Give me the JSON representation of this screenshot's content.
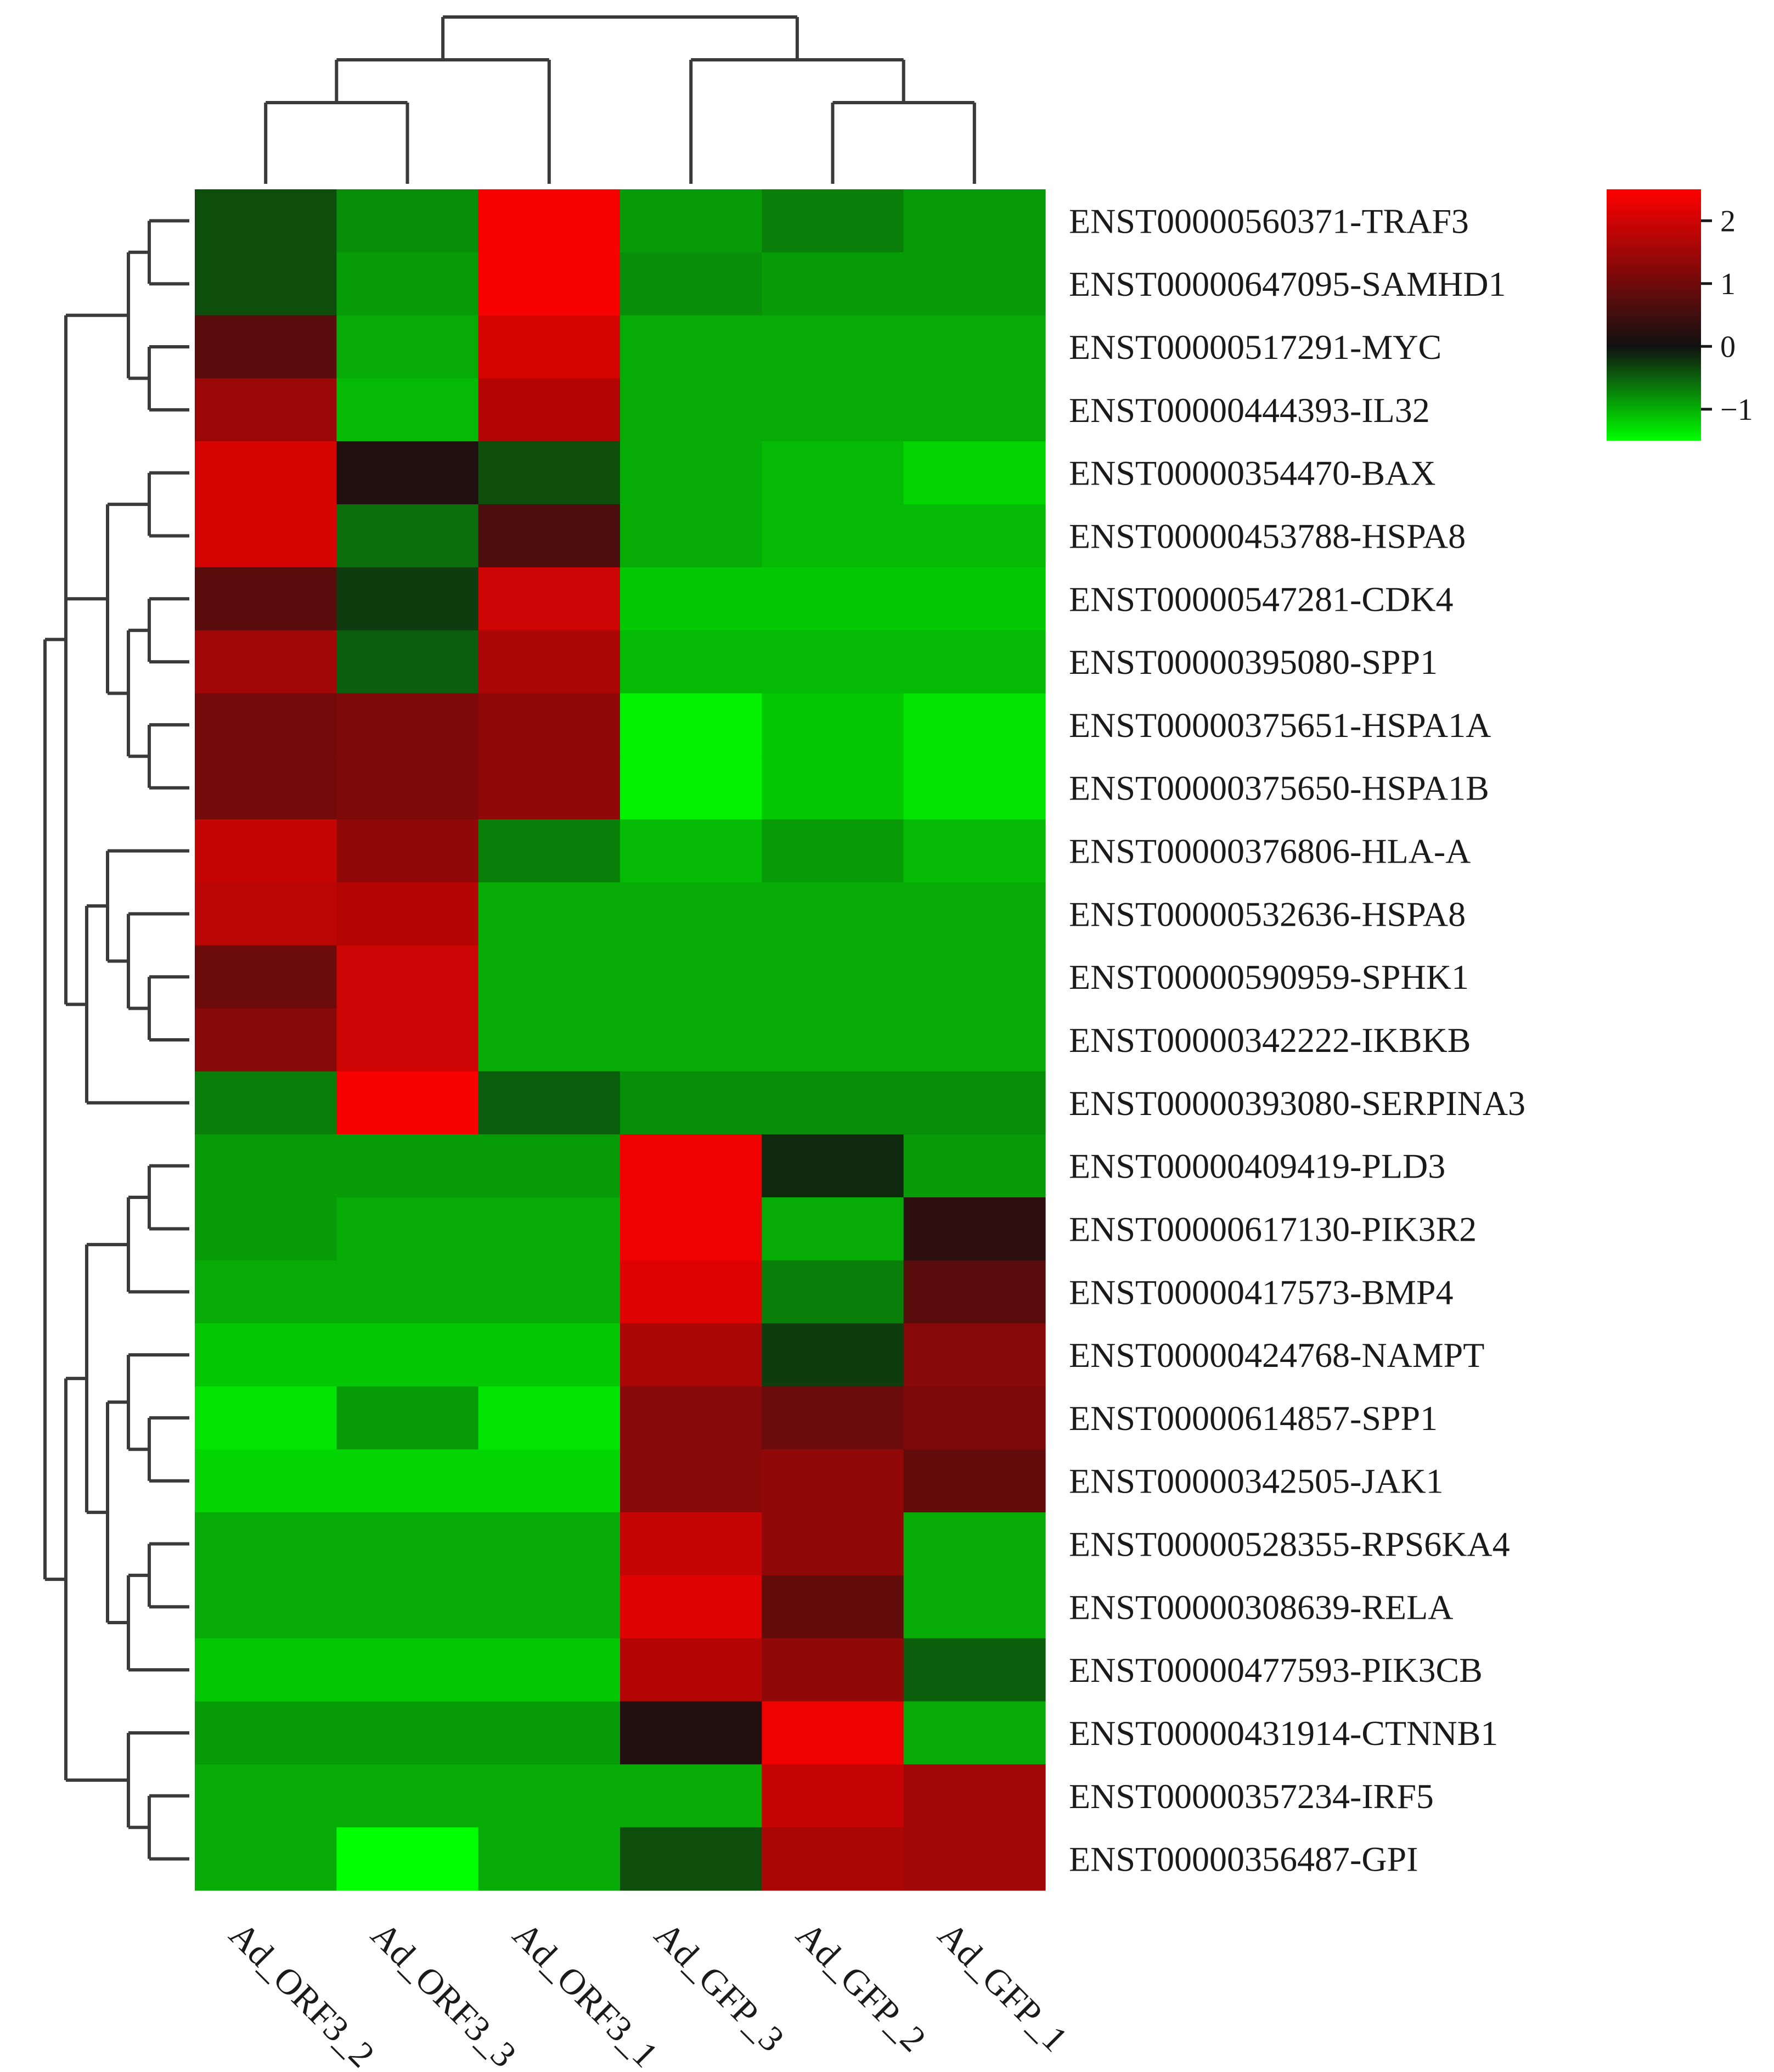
{
  "chart_data": {
    "type": "heatmap",
    "title": "",
    "xlabel": "",
    "ylabel": "",
    "columns": [
      "Ad_ORF3_2",
      "Ad_ORF3_3",
      "Ad_ORF3_1",
      "Ad_GFP_3",
      "Ad_GFP_2",
      "Ad_GFP_1"
    ],
    "rows": [
      "ENST00000560371-TRAF3",
      "ENST00000647095-SAMHD1",
      "ENST00000517291-MYC",
      "ENST00000444393-IL32",
      "ENST00000354470-BAX",
      "ENST00000453788-HSPA8",
      "ENST00000547281-CDK4",
      "ENST00000395080-SPP1",
      "ENST00000375651-HSPA1A",
      "ENST00000375650-HSPA1B",
      "ENST00000376806-HLA-A",
      "ENST00000532636-HSPA8",
      "ENST00000590959-SPHK1",
      "ENST00000342222-IKBKB",
      "ENST00000393080-SERPINA3",
      "ENST00000409419-PLD3",
      "ENST00000617130-PIK3R2",
      "ENST00000417573-BMP4",
      "ENST00000424768-NAMPT",
      "ENST00000614857-SPP1",
      "ENST00000342505-JAK1",
      "ENST00000528355-RPS6KA4",
      "ENST00000308639-RELA",
      "ENST00000477593-PIK3CB",
      "ENST00000431914-CTNNB1",
      "ENST00000357234-IRF5",
      "ENST00000356487-GPI"
    ],
    "values": [
      [
        -0.3,
        -0.7,
        2.4,
        -0.8,
        -0.6,
        -0.8
      ],
      [
        -0.3,
        -0.8,
        2.4,
        -0.7,
        -0.8,
        -0.8
      ],
      [
        0.6,
        -0.9,
        2.0,
        -0.9,
        -0.9,
        -0.9
      ],
      [
        1.3,
        -1.0,
        1.6,
        -0.9,
        -0.9,
        -0.9
      ],
      [
        2.0,
        0.1,
        -0.3,
        -0.9,
        -1.0,
        -1.2
      ],
      [
        2.0,
        -0.5,
        0.5,
        -0.9,
        -1.0,
        -1.0
      ],
      [
        0.6,
        -0.2,
        1.9,
        -1.1,
        -1.1,
        -1.1
      ],
      [
        1.4,
        -0.4,
        1.5,
        -1.0,
        -1.0,
        -1.0
      ],
      [
        0.9,
        1.0,
        1.2,
        -1.4,
        -1.1,
        -1.3
      ],
      [
        0.9,
        1.0,
        1.2,
        -1.4,
        -1.1,
        -1.3
      ],
      [
        1.8,
        1.2,
        -0.6,
        -1.0,
        -0.8,
        -1.0
      ],
      [
        1.7,
        1.6,
        -0.9,
        -0.9,
        -0.9,
        -0.9
      ],
      [
        0.8,
        1.9,
        -0.9,
        -0.9,
        -0.9,
        -0.9
      ],
      [
        1.1,
        1.9,
        -0.9,
        -0.9,
        -0.9,
        -0.9
      ],
      [
        -0.6,
        2.4,
        -0.4,
        -0.7,
        -0.7,
        -0.7
      ],
      [
        -0.8,
        -0.8,
        -0.8,
        2.3,
        -0.1,
        -0.8
      ],
      [
        -0.8,
        -0.9,
        -0.9,
        2.3,
        -0.9,
        0.2
      ],
      [
        -0.9,
        -0.9,
        -0.9,
        2.1,
        -0.6,
        0.6
      ],
      [
        -1.1,
        -1.1,
        -1.1,
        1.5,
        -0.2,
        1.1
      ],
      [
        -1.3,
        -0.8,
        -1.3,
        1.1,
        0.8,
        1.0
      ],
      [
        -1.2,
        -1.2,
        -1.2,
        1.1,
        1.2,
        0.7
      ],
      [
        -0.9,
        -0.9,
        -0.9,
        1.8,
        1.2,
        -0.9
      ],
      [
        -0.9,
        -0.9,
        -0.9,
        2.1,
        0.7,
        -0.9
      ],
      [
        -1.1,
        -1.1,
        -1.1,
        1.6,
        1.2,
        -0.4
      ],
      [
        -0.8,
        -0.8,
        -0.8,
        0.1,
        2.3,
        -0.9
      ],
      [
        -0.9,
        -0.9,
        -0.9,
        -0.9,
        1.8,
        1.4
      ],
      [
        -0.9,
        -1.5,
        -0.9,
        -0.3,
        1.5,
        1.4
      ]
    ],
    "colorbar": {
      "ticks": [
        "2",
        "1",
        "0",
        "−1"
      ],
      "tick_values": [
        2,
        1,
        0,
        -1
      ],
      "range": [
        -1.5,
        2.5
      ],
      "colors": {
        "low": "#00ff00",
        "mid": "#111111",
        "high": "#ff0000"
      }
    },
    "column_dendrogram": "(((Ad_ORF3_2, Ad_ORF3_3), Ad_ORF3_1), (Ad_GFP_3, (Ad_GFP_2, Ad_GFP_1)))",
    "row_dendrogram": "((((TRAF3,SAMHD1),(MYC,IL32)),((BAX,HSPA8),((CDK4,SPP1),(HSPA1A,HSPA1B))),((HLA-A,(HSPA8,(SPHK1,IKBKB))),SERPINA3)),((((PLD3,PIK3R2),BMP4),((NAMPT,(SPP1,JAK1)),((RPS6KA4,RELA),PIK3CB))),(CTNNB1,(IRF5,GPI))))"
  }
}
